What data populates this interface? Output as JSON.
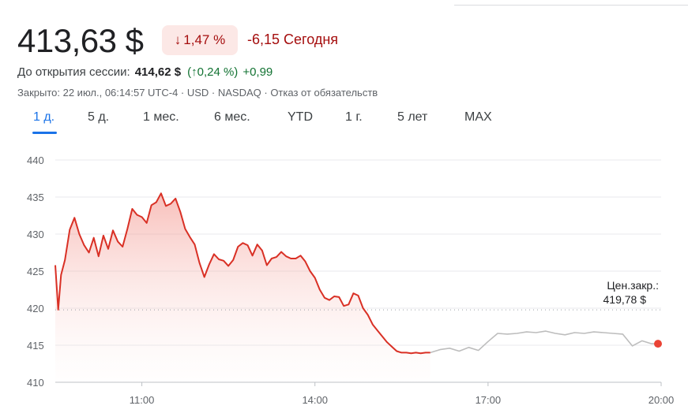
{
  "header": {
    "price": "413,63 $",
    "change_pct": "1,47 %",
    "change_arrow": "↓",
    "change_abs": "-6,15 Сегодня"
  },
  "premarket": {
    "label": "До открытия сессии:",
    "price": "414,62 $",
    "pct": "(↑0,24 %)",
    "abs": "+0,99"
  },
  "closed_info": "Закрыто: 22 июл., 06:14:57 UTC-4 · USD · NASDAQ · Отказ от обязательств",
  "tabs": [
    "1 д.",
    "5 д.",
    "1 мес.",
    "6 мес.",
    "YTD",
    "1 г.",
    "5 лет",
    "MAX"
  ],
  "active_tab": "1 д.",
  "colors": {
    "down": "#d93025",
    "after_hours": "#bdbdbd",
    "accent": "#1a73e8",
    "dot": "#ea4335"
  },
  "chart_data": {
    "type": "line",
    "ylim": [
      410,
      440
    ],
    "yticks": [
      "440",
      "435",
      "430",
      "425",
      "420",
      "415",
      "410"
    ],
    "xlim": [
      "09:30",
      "20:00"
    ],
    "xticks": [
      "11:00",
      "14:00",
      "17:00",
      "20:00"
    ],
    "grid": "horizontal",
    "previous_close": {
      "label": "Цен.закр.:",
      "value": "419,78 $",
      "y": 419.78
    },
    "series": [
      {
        "session": "regular",
        "x": [
          "09:30",
          "09:33",
          "09:36",
          "09:40",
          "09:45",
          "09:50",
          "09:55",
          "10:00",
          "10:05",
          "10:10",
          "10:15",
          "10:20",
          "10:25",
          "10:30",
          "10:35",
          "10:40",
          "10:45",
          "10:50",
          "10:55",
          "11:00",
          "11:05",
          "11:10",
          "11:15",
          "11:20",
          "11:25",
          "11:30",
          "11:35",
          "11:40",
          "11:45",
          "11:50",
          "11:55",
          "12:00",
          "12:05",
          "12:10",
          "12:15",
          "12:20",
          "12:25",
          "12:30",
          "12:35",
          "12:40",
          "12:45",
          "12:50",
          "12:55",
          "13:00",
          "13:05",
          "13:10",
          "13:15",
          "13:20",
          "13:25",
          "13:30",
          "13:35",
          "13:40",
          "13:45",
          "13:50",
          "13:55",
          "14:00",
          "14:05",
          "14:10",
          "14:15",
          "14:20",
          "14:25",
          "14:30",
          "14:35",
          "14:40",
          "14:45",
          "14:50",
          "14:55",
          "15:00",
          "15:05",
          "15:10",
          "15:15",
          "15:20",
          "15:25",
          "15:30",
          "15:35",
          "15:40",
          "15:45",
          "15:50",
          "15:55",
          "16:00"
        ],
        "y": [
          425.8,
          419.8,
          424.5,
          426.5,
          430.6,
          432.2,
          430.0,
          428.5,
          427.5,
          429.5,
          427.0,
          429.8,
          428.0,
          430.5,
          429.0,
          428.3,
          430.7,
          433.4,
          432.6,
          432.3,
          431.5,
          433.9,
          434.3,
          435.5,
          433.8,
          434.1,
          434.8,
          433.0,
          430.7,
          429.6,
          428.6,
          426.1,
          424.2,
          425.9,
          427.3,
          426.6,
          426.4,
          425.7,
          426.5,
          428.3,
          428.8,
          428.5,
          427.1,
          428.6,
          427.8,
          425.8,
          426.7,
          426.9,
          427.6,
          427.0,
          426.7,
          426.7,
          427.1,
          426.3,
          425.0,
          424.1,
          422.5,
          421.4,
          421.1,
          421.6,
          421.5,
          420.3,
          420.5,
          422.0,
          421.7,
          420.0,
          419.1,
          417.8,
          417.0,
          416.2,
          415.4,
          414.8,
          414.2,
          414.0,
          414.0,
          413.9,
          414.0,
          413.9,
          414.0,
          414.0
        ]
      },
      {
        "session": "after_hours",
        "x": [
          "16:00",
          "16:10",
          "16:20",
          "16:30",
          "16:40",
          "16:50",
          "17:00",
          "17:10",
          "17:20",
          "17:30",
          "17:40",
          "17:50",
          "18:00",
          "18:10",
          "18:20",
          "18:30",
          "18:40",
          "18:50",
          "19:00",
          "19:10",
          "19:20",
          "19:30",
          "19:40",
          "19:50",
          "20:00"
        ],
        "y": [
          414.0,
          414.4,
          414.6,
          414.2,
          414.7,
          414.3,
          415.5,
          416.6,
          416.5,
          416.6,
          416.8,
          416.7,
          416.9,
          416.6,
          416.4,
          416.7,
          416.6,
          416.8,
          416.7,
          416.6,
          416.5,
          414.9,
          415.6,
          415.2,
          415.2
        ]
      }
    ]
  }
}
